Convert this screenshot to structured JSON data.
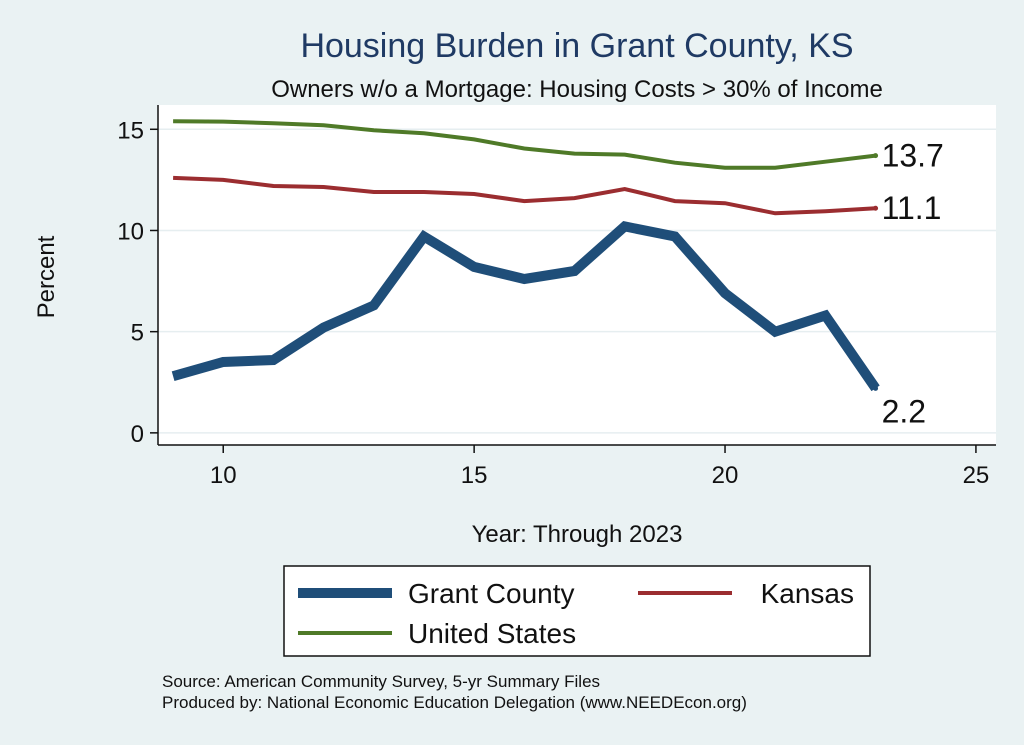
{
  "chart_data": {
    "type": "line",
    "title": "Housing Burden in Grant County, KS",
    "subtitle": "Owners w/o a Mortgage: Housing Costs > 30% of Income",
    "xlabel": "Year: Through 2023",
    "ylabel": "Percent",
    "xlim": [
      8.7,
      25.4
    ],
    "ylim": [
      -0.6,
      16.2
    ],
    "x_ticks": [
      10,
      15,
      20,
      25
    ],
    "y_ticks": [
      0,
      5,
      10,
      15
    ],
    "x": [
      9,
      10,
      11,
      12,
      13,
      14,
      15,
      16,
      17,
      18,
      19,
      20,
      21,
      22,
      23
    ],
    "series": [
      {
        "name": "Grant County",
        "color": "#1f4e79",
        "width": 10,
        "values": [
          2.8,
          3.5,
          3.6,
          5.2,
          6.3,
          9.7,
          8.2,
          7.6,
          8.0,
          10.2,
          9.7,
          6.9,
          5.0,
          5.8,
          2.2
        ],
        "end_label": "2.2"
      },
      {
        "name": "Kansas",
        "color": "#9b2d30",
        "width": 4,
        "values": [
          12.6,
          12.5,
          12.2,
          12.15,
          11.9,
          11.9,
          11.8,
          11.45,
          11.6,
          12.05,
          11.45,
          11.35,
          10.85,
          10.95,
          11.1
        ],
        "end_label": "11.1"
      },
      {
        "name": "United States",
        "color": "#4f7a28",
        "width": 4,
        "values": [
          15.4,
          15.38,
          15.3,
          15.2,
          14.95,
          14.8,
          14.5,
          14.05,
          13.8,
          13.75,
          13.35,
          13.1,
          13.1,
          13.4,
          13.7
        ],
        "end_label": "13.7"
      }
    ],
    "legend": {
      "position": "bottom",
      "entries": [
        "Grant County",
        "Kansas",
        "United States"
      ]
    },
    "grid": true
  },
  "footer": {
    "source": "Source: American Community Survey, 5-yr Summary Files",
    "produced": "Produced by: National Economic Education Delegation (www.NEEDEcon.org)"
  }
}
